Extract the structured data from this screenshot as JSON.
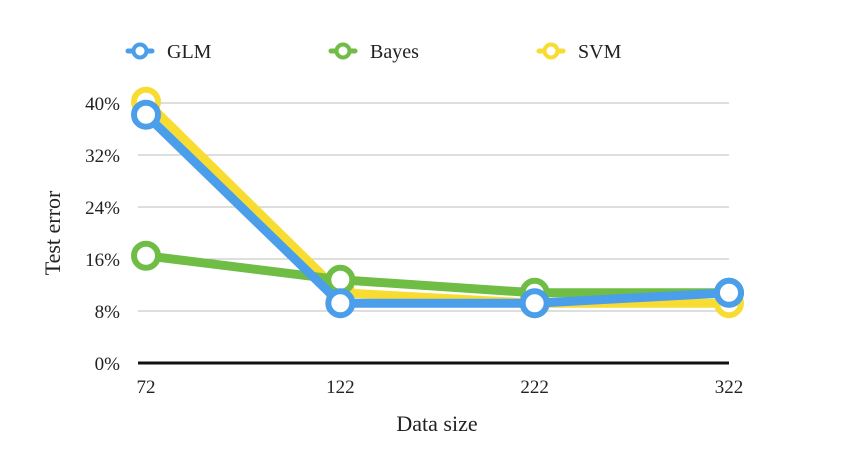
{
  "chart_data": {
    "type": "line",
    "categories": [
      "72",
      "122",
      "222",
      "322"
    ],
    "series": [
      {
        "name": "GLM",
        "color": "#4a9eea",
        "values": [
          38.2,
          9.2,
          9.2,
          10.8
        ]
      },
      {
        "name": "Bayes",
        "color": "#6fbd45",
        "values": [
          16.5,
          12.8,
          10.8,
          10.8
        ]
      },
      {
        "name": "SVM",
        "color": "#f8dc32",
        "values": [
          40.2,
          10.8,
          9.2,
          9.2
        ]
      }
    ],
    "xlabel": "Data size",
    "ylabel": "Test error",
    "ylim": [
      0,
      40
    ],
    "yticks": [
      "0%",
      "8%",
      "16%",
      "24%",
      "32%",
      "40%"
    ],
    "ytick_values": [
      0,
      8,
      16,
      24,
      32,
      40
    ],
    "grid": true,
    "legend_position": "top"
  }
}
